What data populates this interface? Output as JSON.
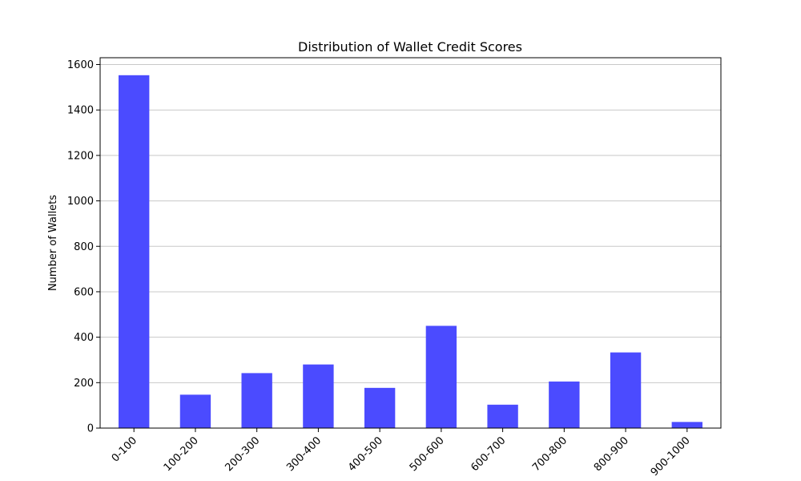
{
  "chart_data": {
    "type": "bar",
    "title": "Distribution of Wallet Credit Scores",
    "xlabel": "",
    "ylabel": "Number of Wallets",
    "categories": [
      "0-100",
      "100-200",
      "200-300",
      "300-400",
      "400-500",
      "500-600",
      "600-700",
      "700-800",
      "800-900",
      "900-1000"
    ],
    "values": [
      1553,
      147,
      242,
      280,
      177,
      450,
      103,
      205,
      333,
      27
    ],
    "ylim": [
      0,
      1630
    ],
    "yticks": [
      0,
      200,
      400,
      600,
      800,
      1000,
      1200,
      1400,
      1600
    ],
    "grid": "y",
    "legend": "none",
    "bar_color": "#4b4bff",
    "xtick_rotation": 45
  }
}
